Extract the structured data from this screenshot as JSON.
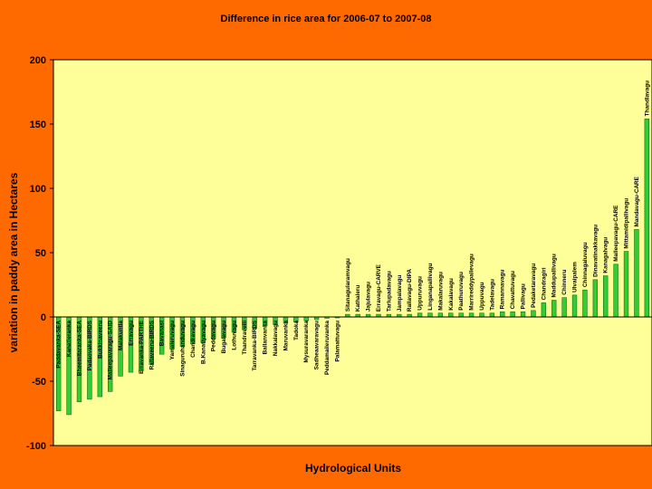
{
  "chart_data": {
    "type": "bar",
    "title": "Difference in rice area  for 2006-07 to 2007-08",
    "xlabel": "Hydrological Units",
    "ylabel": "variation in paddy area in Hectares",
    "ylim": [
      -100,
      200
    ],
    "yticks": [
      -100,
      -50,
      0,
      50,
      100,
      150,
      200
    ],
    "grid": false,
    "colors": {
      "bar": "#33CC33",
      "bar_edge": "#1A6E1A",
      "plot_bg": "#FFFF99",
      "page_bg": "#FF6A00",
      "axis": "#000000"
    },
    "categories": [
      "Paddavanka-SEA",
      "Kanatieranka",
      "Bheemitaranka-SEA",
      "Padaovaka-BIRDS",
      "Bukkinaveeru",
      "Malleepavaragu-SAID",
      "Malakuntla",
      "Erravagu",
      "Erravanka-PARTHE",
      "Rallaveeru-BIRDS",
      "Bavanasi",
      "Yamaleruvagu",
      "Sinaguruhanduvagu",
      "Chandravagu",
      "B.Kanatiyavagu",
      "Peddavagu",
      "Bugalavagu",
      "Lothuvagu",
      "Thandravelli",
      "Tarravanka-BIRDS",
      "Ballanvanka",
      "Nakkalavagu",
      "Maruvanka",
      "Tadoka",
      "Mysuravaranka",
      "Sadheaavaravagu",
      "Peddamaileruvanka",
      "Palamattuvagu",
      "Sitanagularamvagu",
      "Kathaleru",
      "Jajulavagu",
      "Erravagu-CARVE",
      "Tarlupadavagu",
      "Jampalavagu",
      "Rallavagu-DIPA",
      "Uppuruvagu",
      "Linganapallivagu",
      "Makalaruvagu",
      "Kakalavagu",
      "Paathuruvagu",
      "Marrireddypallevagu",
      "Uppuvagu",
      "Tadelavagu",
      "Ramannavagu",
      "Chavattuvagu",
      "Pallivagu",
      "Pedaketaravagu",
      "Chandragiri",
      "Maddupallivagu",
      "Chinneru",
      "Ulvaipalem",
      "Chinnagaluvagu",
      "Dinavatinakkavagu",
      "Kanagalvagu",
      "Malleepavagu-CARE",
      "Mittamidipallivagu",
      "Mandavagu-CARE",
      "Thandlavagu"
    ],
    "values": [
      -73,
      -76,
      -66,
      -64,
      -62,
      -58,
      -46,
      -43,
      -42,
      -37,
      -29,
      -25,
      -23,
      -21,
      -20,
      -17,
      -16,
      -12,
      -10,
      -9,
      -7,
      -6,
      -5,
      -4,
      -3,
      -2,
      -1,
      -0.5,
      2,
      2,
      2,
      2,
      2,
      2,
      2,
      3,
      3,
      3,
      3,
      3,
      3,
      3,
      3,
      4,
      4,
      4,
      5,
      11,
      13,
      15,
      17,
      21,
      29,
      32,
      41,
      51,
      68,
      154
    ]
  }
}
